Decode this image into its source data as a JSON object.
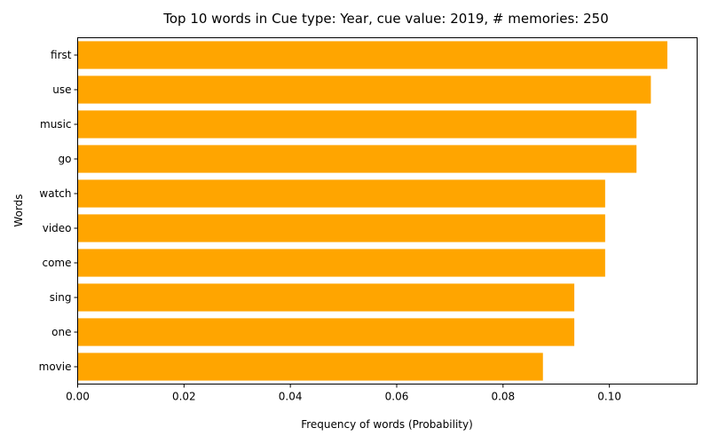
{
  "chart_data": {
    "type": "bar",
    "orientation": "horizontal",
    "title": "Top 10 words in Cue type: Year, cue value: 2019, # memories: 250",
    "xlabel": "Frequency of words (Probability)",
    "ylabel": "Words",
    "categories": [
      "first",
      "use",
      "music",
      "go",
      "watch",
      "video",
      "come",
      "sing",
      "one",
      "movie"
    ],
    "values": [
      0.1109,
      0.1078,
      0.1051,
      0.1051,
      0.0992,
      0.0992,
      0.0992,
      0.0934,
      0.0934,
      0.0875
    ],
    "xlim": [
      0,
      0.1165
    ],
    "xticks": [
      "0.00",
      "0.02",
      "0.04",
      "0.06",
      "0.08",
      "0.10"
    ],
    "bar_color": "#ffa500",
    "grid": false,
    "legend": false
  }
}
